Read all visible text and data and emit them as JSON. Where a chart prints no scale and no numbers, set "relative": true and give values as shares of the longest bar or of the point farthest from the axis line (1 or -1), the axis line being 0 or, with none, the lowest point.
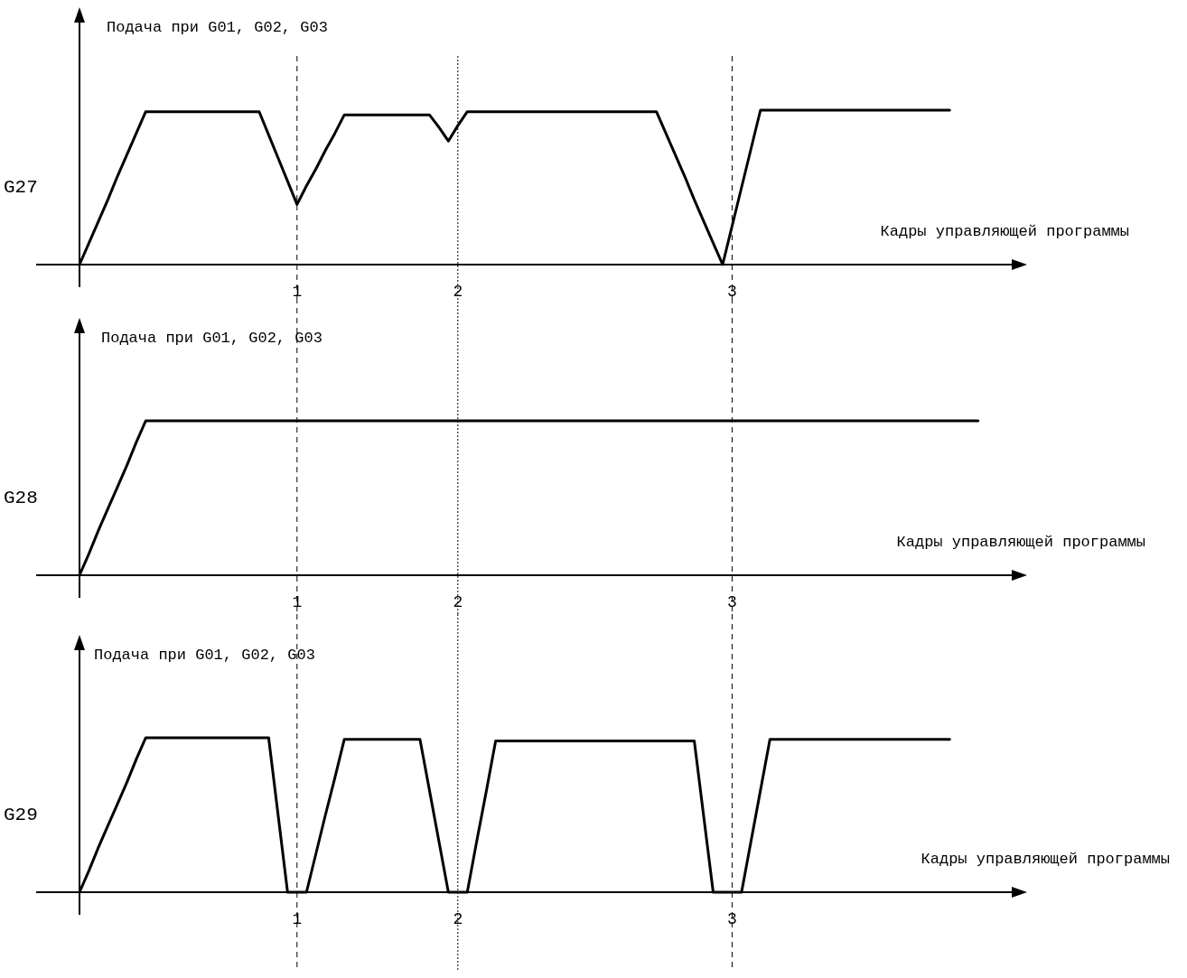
{
  "chart_data": [
    {
      "type": "line",
      "title": "G27",
      "ylabel": "Подача при G01, G02, G03",
      "xlabel": "Кадры управляющей программы",
      "relative": true,
      "categories": [
        null,
        null,
        null,
        null,
        null,
        null,
        null,
        null,
        null,
        null,
        null,
        null,
        null,
        null,
        null,
        null,
        null,
        null,
        null,
        null,
        null,
        null,
        null,
        "1",
        null,
        null,
        null,
        null,
        null,
        null,
        null,
        null,
        null,
        null,
        null,
        null,
        null,
        null,
        null,
        null,
        "2",
        null,
        null,
        null,
        null,
        null,
        null,
        null,
        null,
        null,
        null,
        null,
        null,
        null,
        null,
        null,
        null,
        null,
        null,
        null,
        null,
        null,
        null,
        null,
        null,
        null,
        null,
        null,
        null,
        "3",
        null,
        null,
        null,
        null,
        null,
        null,
        null,
        null,
        null,
        null,
        null,
        null,
        null,
        null,
        null,
        null,
        null,
        null,
        null,
        null,
        null,
        null,
        null
      ],
      "series": [
        {
          "color": "#000000",
          "values": [
            0,
            0.14,
            0.28,
            0.42,
            0.57,
            0.71,
            0.85,
            0.99,
            0.99,
            0.99,
            0.99,
            0.99,
            0.99,
            0.99,
            0.99,
            0.99,
            0.99,
            0.99,
            0.99,
            0.99,
            0.84,
            0.69,
            0.54,
            0.39,
            0.51,
            0.62,
            0.74,
            0.85,
            0.97,
            0.97,
            0.97,
            0.97,
            0.97,
            0.97,
            0.97,
            0.97,
            0.97,
            0.97,
            0.89,
            0.8,
            0.9,
            0.99,
            0.99,
            0.99,
            0.99,
            0.99,
            0.99,
            0.99,
            0.99,
            0.99,
            0.99,
            0.99,
            0.99,
            0.99,
            0.99,
            0.99,
            0.99,
            0.99,
            0.99,
            0.99,
            0.99,
            0.99,
            0.85,
            0.71,
            0.57,
            0.42,
            0.28,
            0.14,
            0,
            0.25,
            0.5,
            0.75,
            1,
            1,
            1,
            1,
            1,
            1,
            1,
            1,
            1,
            1,
            1,
            1,
            1,
            1,
            1,
            1,
            1,
            1,
            1,
            1,
            1
          ]
        }
      ],
      "ref_lines": [
        {
          "axis": "x",
          "value": "1",
          "line_style": "dashed"
        },
        {
          "axis": "x",
          "value": "2",
          "line_style": "dotted"
        },
        {
          "axis": "x",
          "value": "3",
          "line_style": "dashed"
        }
      ]
    },
    {
      "type": "line",
      "title": "G28",
      "ylabel": "Подача при G01, G02, G03",
      "xlabel": "Кадры управляющей программы",
      "relative": true,
      "categories": [
        null,
        null,
        null,
        null,
        null,
        null,
        null,
        null,
        null,
        null,
        null,
        null,
        null,
        null,
        null,
        null,
        null,
        null,
        null,
        null,
        null,
        null,
        null,
        "1",
        null,
        null,
        null,
        null,
        null,
        null,
        null,
        null,
        null,
        null,
        null,
        null,
        null,
        null,
        null,
        null,
        "2",
        null,
        null,
        null,
        null,
        null,
        null,
        null,
        null,
        null,
        null,
        null,
        null,
        null,
        null,
        null,
        null,
        null,
        null,
        null,
        null,
        null,
        null,
        null,
        null,
        null,
        null,
        null,
        null,
        "3",
        null,
        null,
        null,
        null,
        null,
        null,
        null,
        null,
        null,
        null,
        null,
        null,
        null,
        null,
        null,
        null,
        null,
        null,
        null,
        null,
        null,
        null,
        null,
        null,
        null,
        null
      ],
      "series": [
        {
          "color": "#000000",
          "values": [
            0,
            0.14,
            0.29,
            0.43,
            0.57,
            0.71,
            0.86,
            1,
            1,
            1,
            1,
            1,
            1,
            1,
            1,
            1,
            1,
            1,
            1,
            1,
            1,
            1,
            1,
            1,
            1,
            1,
            1,
            1,
            1,
            1,
            1,
            1,
            1,
            1,
            1,
            1,
            1,
            1,
            1,
            1,
            1,
            1,
            1,
            1,
            1,
            1,
            1,
            1,
            1,
            1,
            1,
            1,
            1,
            1,
            1,
            1,
            1,
            1,
            1,
            1,
            1,
            1,
            1,
            1,
            1,
            1,
            1,
            1,
            1,
            1,
            1,
            1,
            1,
            1,
            1,
            1,
            1,
            1,
            1,
            1,
            1,
            1,
            1,
            1,
            1,
            1,
            1,
            1,
            1,
            1,
            1,
            1,
            1,
            1,
            1,
            1
          ]
        }
      ],
      "ref_lines": [
        {
          "axis": "x",
          "value": "1",
          "line_style": "dashed"
        },
        {
          "axis": "x",
          "value": "2",
          "line_style": "dotted"
        },
        {
          "axis": "x",
          "value": "3",
          "line_style": "dashed"
        }
      ]
    },
    {
      "type": "line",
      "title": "G29",
      "ylabel": "Подача при G01, G02, G03",
      "xlabel": "Кадры управляющей программы",
      "relative": true,
      "categories": [
        null,
        null,
        null,
        null,
        null,
        null,
        null,
        null,
        null,
        null,
        null,
        null,
        null,
        null,
        null,
        null,
        null,
        null,
        null,
        null,
        null,
        null,
        null,
        "1",
        null,
        null,
        null,
        null,
        null,
        null,
        null,
        null,
        null,
        null,
        null,
        null,
        null,
        null,
        null,
        null,
        "2",
        null,
        null,
        null,
        null,
        null,
        null,
        null,
        null,
        null,
        null,
        null,
        null,
        null,
        null,
        null,
        null,
        null,
        null,
        null,
        null,
        null,
        null,
        null,
        null,
        null,
        null,
        null,
        null,
        "3",
        null,
        null,
        null,
        null,
        null,
        null,
        null,
        null,
        null,
        null,
        null,
        null,
        null,
        null,
        null,
        null,
        null,
        null,
        null,
        null,
        null,
        null,
        null
      ],
      "series": [
        {
          "color": "#000000",
          "values": [
            0,
            0.14,
            0.29,
            0.43,
            0.57,
            0.71,
            0.86,
            1,
            1,
            1,
            1,
            1,
            1,
            1,
            1,
            1,
            1,
            1,
            1,
            1,
            1,
            0.5,
            0,
            0,
            0,
            0.25,
            0.5,
            0.74,
            0.99,
            0.99,
            0.99,
            0.99,
            0.99,
            0.99,
            0.99,
            0.99,
            0.99,
            0.66,
            0.33,
            0,
            0,
            0,
            0.33,
            0.65,
            0.98,
            0.98,
            0.98,
            0.98,
            0.98,
            0.98,
            0.98,
            0.98,
            0.98,
            0.98,
            0.98,
            0.98,
            0.98,
            0.98,
            0.98,
            0.98,
            0.98,
            0.98,
            0.98,
            0.98,
            0.98,
            0.98,
            0.49,
            0,
            0,
            0,
            0,
            0.33,
            0.66,
            0.99,
            0.99,
            0.99,
            0.99,
            0.99,
            0.99,
            0.99,
            0.99,
            0.99,
            0.99,
            0.99,
            0.99,
            0.99,
            0.99,
            0.99,
            0.99,
            0.99,
            0.99,
            0.99,
            0.99
          ]
        }
      ],
      "ref_lines": [
        {
          "axis": "x",
          "value": "1",
          "line_style": "dashed"
        },
        {
          "axis": "x",
          "value": "2",
          "line_style": "dotted"
        },
        {
          "axis": "x",
          "value": "3",
          "line_style": "dashed"
        }
      ]
    }
  ]
}
